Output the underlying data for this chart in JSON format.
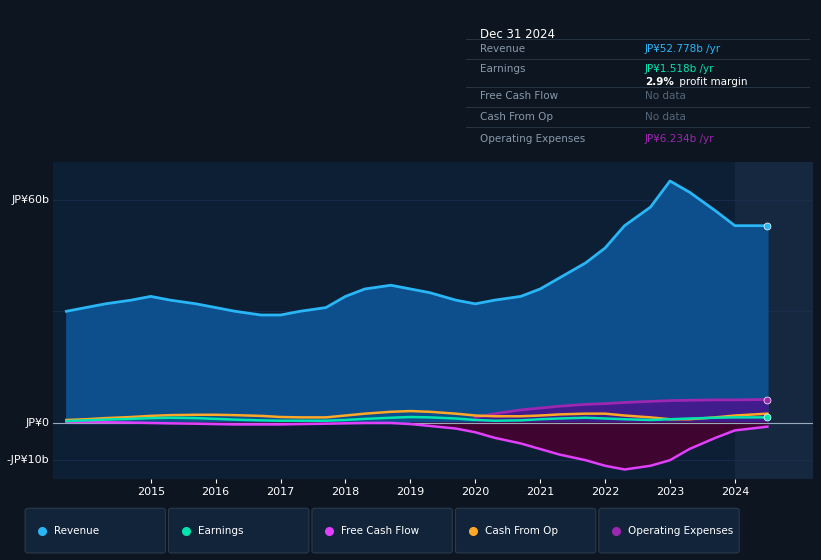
{
  "bg_color": "#0d1520",
  "plot_bg_color": "#0d1f35",
  "grid_color": "#1e3050",
  "ylabel_60": "JP¥60b",
  "ylabel_0": "JP¥0",
  "ylabel_neg10": "-JP¥10b",
  "years": [
    2013.7,
    2014.0,
    2014.3,
    2014.7,
    2015.0,
    2015.3,
    2015.7,
    2016.0,
    2016.3,
    2016.7,
    2017.0,
    2017.3,
    2017.7,
    2018.0,
    2018.3,
    2018.7,
    2019.0,
    2019.3,
    2019.7,
    2020.0,
    2020.3,
    2020.7,
    2021.0,
    2021.3,
    2021.7,
    2022.0,
    2022.3,
    2022.7,
    2023.0,
    2023.3,
    2023.7,
    2024.0,
    2024.5
  ],
  "revenue": [
    30,
    31,
    32,
    33,
    34,
    33,
    32,
    31,
    30,
    29,
    29,
    30,
    31,
    34,
    36,
    37,
    36,
    35,
    33,
    32,
    33,
    34,
    36,
    39,
    43,
    47,
    53,
    58,
    65,
    62,
    57,
    53,
    53
  ],
  "earnings": [
    0.5,
    0.7,
    0.9,
    1.1,
    1.3,
    1.4,
    1.3,
    1.1,
    0.9,
    0.7,
    0.6,
    0.6,
    0.6,
    0.8,
    1.1,
    1.4,
    1.6,
    1.5,
    1.2,
    0.8,
    0.6,
    0.7,
    1.0,
    1.2,
    1.4,
    1.2,
    1.0,
    0.8,
    1.0,
    1.2,
    1.4,
    1.5,
    1.5
  ],
  "free_cash_flow": [
    0.3,
    0.3,
    0.2,
    0.1,
    0.0,
    -0.1,
    -0.2,
    -0.3,
    -0.4,
    -0.4,
    -0.4,
    -0.3,
    -0.2,
    -0.1,
    0.0,
    0.0,
    -0.3,
    -0.8,
    -1.5,
    -2.5,
    -4.0,
    -5.5,
    -7.0,
    -8.5,
    -10.0,
    -11.5,
    -12.5,
    -11.5,
    -10.0,
    -7.0,
    -4.0,
    -2.0,
    -1.0
  ],
  "cash_from_op": [
    0.8,
    1.0,
    1.3,
    1.6,
    1.9,
    2.1,
    2.2,
    2.2,
    2.1,
    1.9,
    1.6,
    1.5,
    1.5,
    2.0,
    2.5,
    3.0,
    3.2,
    3.0,
    2.5,
    2.0,
    1.8,
    1.8,
    2.0,
    2.3,
    2.5,
    2.5,
    2.0,
    1.5,
    1.0,
    1.0,
    1.5,
    2.0,
    2.5
  ],
  "operating_expenses": [
    0,
    0,
    0,
    0,
    0,
    0,
    0,
    0,
    0,
    0,
    0,
    0,
    0,
    0,
    0,
    0,
    0,
    0,
    0,
    1.5,
    2.5,
    3.5,
    4.0,
    4.5,
    5.0,
    5.2,
    5.5,
    5.8,
    6.0,
    6.1,
    6.2,
    6.2,
    6.3
  ],
  "revenue_color": "#29b6f6",
  "revenue_fill_color": "#0d4f8c",
  "earnings_color": "#00e5b0",
  "fcf_color": "#e040fb",
  "fcf_fill_color": "#4a0030",
  "cash_op_color": "#ffa726",
  "opex_color": "#9c27b0",
  "opex_fill_color": "#4a148c",
  "highlight_color": "#152840",
  "highlight_x_start": 2024.0,
  "highlight_x_end": 2025.2,
  "x_min": 2013.5,
  "x_max": 2025.2,
  "y_min": -15,
  "y_max": 70,
  "tick_years": [
    2015,
    2016,
    2017,
    2018,
    2019,
    2020,
    2021,
    2022,
    2023,
    2024
  ],
  "info_box": {
    "title": "Dec 31 2024",
    "revenue_label": "Revenue",
    "revenue_value": "JP¥52.778b /yr",
    "earnings_label": "Earnings",
    "earnings_value": "JP¥1.518b /yr",
    "margin_text": "2.9%",
    "margin_suffix": " profit margin",
    "fcf_label": "Free Cash Flow",
    "fcf_value": "No data",
    "cash_op_label": "Cash From Op",
    "cash_op_value": "No data",
    "opex_label": "Operating Expenses",
    "opex_value": "JP¥6.234b /yr"
  },
  "legend_items": [
    {
      "label": "Revenue",
      "color": "#29b6f6"
    },
    {
      "label": "Earnings",
      "color": "#00e5b0"
    },
    {
      "label": "Free Cash Flow",
      "color": "#e040fb"
    },
    {
      "label": "Cash From Op",
      "color": "#ffa726"
    },
    {
      "label": "Operating Expenses",
      "color": "#9c27b0"
    }
  ]
}
